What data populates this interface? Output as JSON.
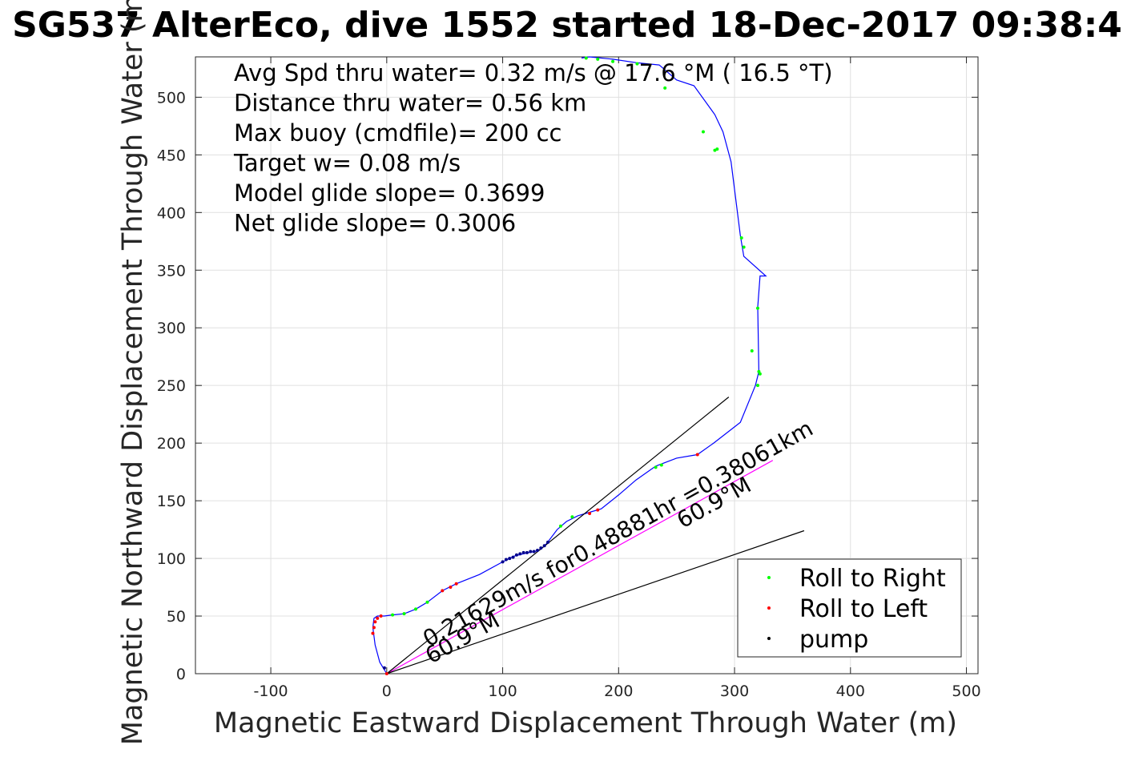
{
  "chart_data": {
    "type": "line",
    "title": "SG537 AlterEco, dive 1552 started 18-Dec-2017 09:38:4",
    "xlabel": "Magnetic Eastward Displacement Through Water (m)",
    "ylabel": "Magnetic Northward Displacement Through Water (m)",
    "xlim": [
      -165,
      510
    ],
    "ylim": [
      0,
      535
    ],
    "xticks": [
      -100,
      0,
      100,
      200,
      300,
      400,
      500
    ],
    "xtick_labels": [
      "-100",
      "0",
      "100",
      "200",
      "300",
      "400",
      "500"
    ],
    "yticks": [
      0,
      50,
      100,
      150,
      200,
      250,
      300,
      350,
      400,
      450,
      500
    ],
    "ytick_labels": [
      "0",
      "50",
      "100",
      "150",
      "200",
      "250",
      "300",
      "350",
      "400",
      "450",
      "500"
    ],
    "grid": true,
    "legend_position": "bottom-right",
    "legend": [
      {
        "label": "Roll to Right",
        "color": "#00ff00"
      },
      {
        "label": "Roll to Left",
        "color": "#ff0000"
      },
      {
        "label": "pump",
        "color": "#000000"
      }
    ],
    "annotations": [
      "Avg Spd thru water=  0.32 m/s @  17.6 °M ( 16.5 °T)",
      "Distance thru water=  0.56 km",
      "Max buoy (cmdfile)= 200 cc",
      "Target w= 0.08 m/s",
      "Model glide slope= 0.3699",
      "Net glide slope= 0.3006"
    ],
    "series": [
      {
        "style": "track",
        "color": "#0000ff",
        "x": [
          0,
          -6,
          -10,
          -12,
          -11,
          -8,
          -2,
          5,
          15,
          25,
          35,
          48,
          60,
          80,
          100,
          110,
          122,
          128,
          133,
          138,
          147,
          155,
          165,
          175,
          185,
          200,
          215,
          232,
          250,
          268,
          282,
          305,
          318,
          321,
          320,
          322,
          327,
          308,
          305,
          297,
          290,
          283,
          265,
          250,
          235,
          215,
          195,
          175,
          168
        ],
        "y": [
          0,
          10,
          25,
          40,
          48,
          50,
          50,
          51,
          52,
          56,
          62,
          72,
          78,
          86,
          97,
          102,
          105,
          106,
          108,
          113,
          125,
          132,
          137,
          140,
          143,
          155,
          168,
          180,
          187,
          190,
          200,
          218,
          250,
          262,
          318,
          345,
          345,
          362,
          380,
          444,
          470,
          485,
          510,
          515,
          528,
          530,
          533,
          535,
          534
        ]
      },
      {
        "style": "pump-dots",
        "color": "#00008b",
        "x": [
          -2,
          100,
          103,
          106,
          109,
          112,
          115,
          118,
          121,
          124,
          127,
          130,
          133,
          136,
          139
        ],
        "y": [
          5,
          97,
          99,
          100,
          101,
          103,
          104,
          105,
          105,
          106,
          106,
          107,
          109,
          111,
          114
        ]
      },
      {
        "style": "right-dots",
        "color": "#00ff00",
        "x": [
          5,
          15,
          25,
          35,
          150,
          160,
          232,
          237,
          283,
          306,
          308,
          320,
          321,
          322,
          320,
          315,
          285,
          273,
          240,
          216,
          195,
          182,
          172
        ],
        "y": [
          51,
          52,
          56,
          62,
          128,
          136,
          179,
          181,
          454,
          378,
          370,
          317,
          262,
          260,
          250,
          280,
          455,
          470,
          508,
          529,
          531,
          533,
          534
        ]
      },
      {
        "style": "left-dots",
        "color": "#ff0000",
        "x": [
          -12,
          -11,
          -10,
          -8,
          -5,
          0,
          48,
          55,
          60,
          175,
          182,
          268
        ],
        "y": [
          35,
          40,
          45,
          48,
          50,
          0,
          72,
          75,
          78,
          139,
          142,
          190
        ]
      },
      {
        "style": "magenta-line",
        "color": "#ff00ff",
        "x": [
          0,
          333
        ],
        "y": [
          0,
          185
        ]
      },
      {
        "style": "black-line",
        "color": "#000000",
        "x": [
          0,
          295
        ],
        "y": [
          0,
          240
        ]
      },
      {
        "style": "black-line",
        "color": "#000000",
        "x": [
          0,
          360
        ],
        "y": [
          0,
          124
        ]
      }
    ],
    "rotated_labels": [
      "0.21629m/s for0.48881hr =0.38061km",
      "60.9°M",
      "60.9°M"
    ]
  }
}
